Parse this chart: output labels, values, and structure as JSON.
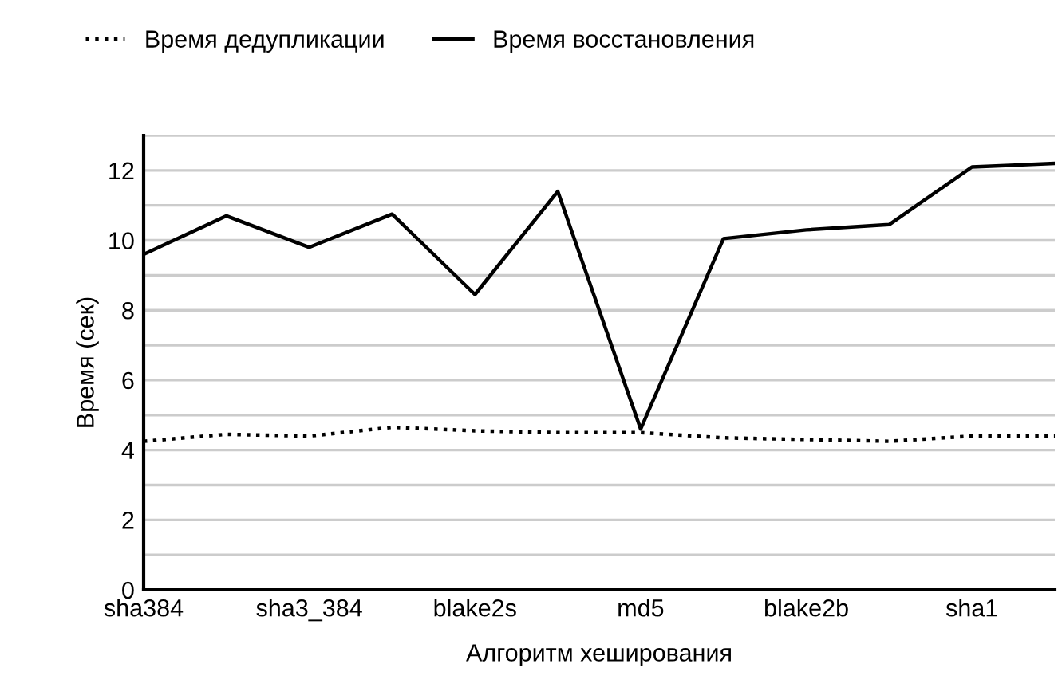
{
  "chart_data": {
    "type": "line",
    "xlabel": "Алгоритм хеширования",
    "ylabel": "Время (сек)",
    "categories": [
      "sha384",
      null,
      "sha3_384",
      null,
      "blake2s",
      null,
      "md5",
      null,
      "blake2b",
      null,
      "sha1",
      null
    ],
    "series": [
      {
        "name": "Время дедупликации",
        "color": "#000000",
        "line_style": "dotted",
        "values": [
          4.25,
          4.45,
          4.4,
          4.65,
          4.55,
          4.5,
          4.5,
          4.35,
          4.3,
          4.25,
          4.4,
          4.4
        ]
      },
      {
        "name": "Время восстановления",
        "color": "#000000",
        "line_style": "solid",
        "values": [
          9.6,
          10.7,
          9.8,
          10.75,
          8.45,
          11.4,
          4.6,
          10.05,
          10.3,
          10.45,
          12.1,
          12.2
        ]
      }
    ],
    "ylim": [
      0,
      13
    ],
    "yticks": [
      0,
      {
        "value": 1,
        "label": null
      },
      2,
      {
        "value": 3,
        "label": null
      },
      4,
      {
        "value": 5,
        "label": null
      },
      6,
      {
        "value": 7,
        "label": null
      },
      8,
      {
        "value": 9,
        "label": null
      },
      10,
      {
        "value": 11,
        "label": null
      },
      12,
      {
        "value": 13,
        "label": null
      }
    ],
    "grid": "y",
    "legend": "top",
    "marker": "none"
  }
}
